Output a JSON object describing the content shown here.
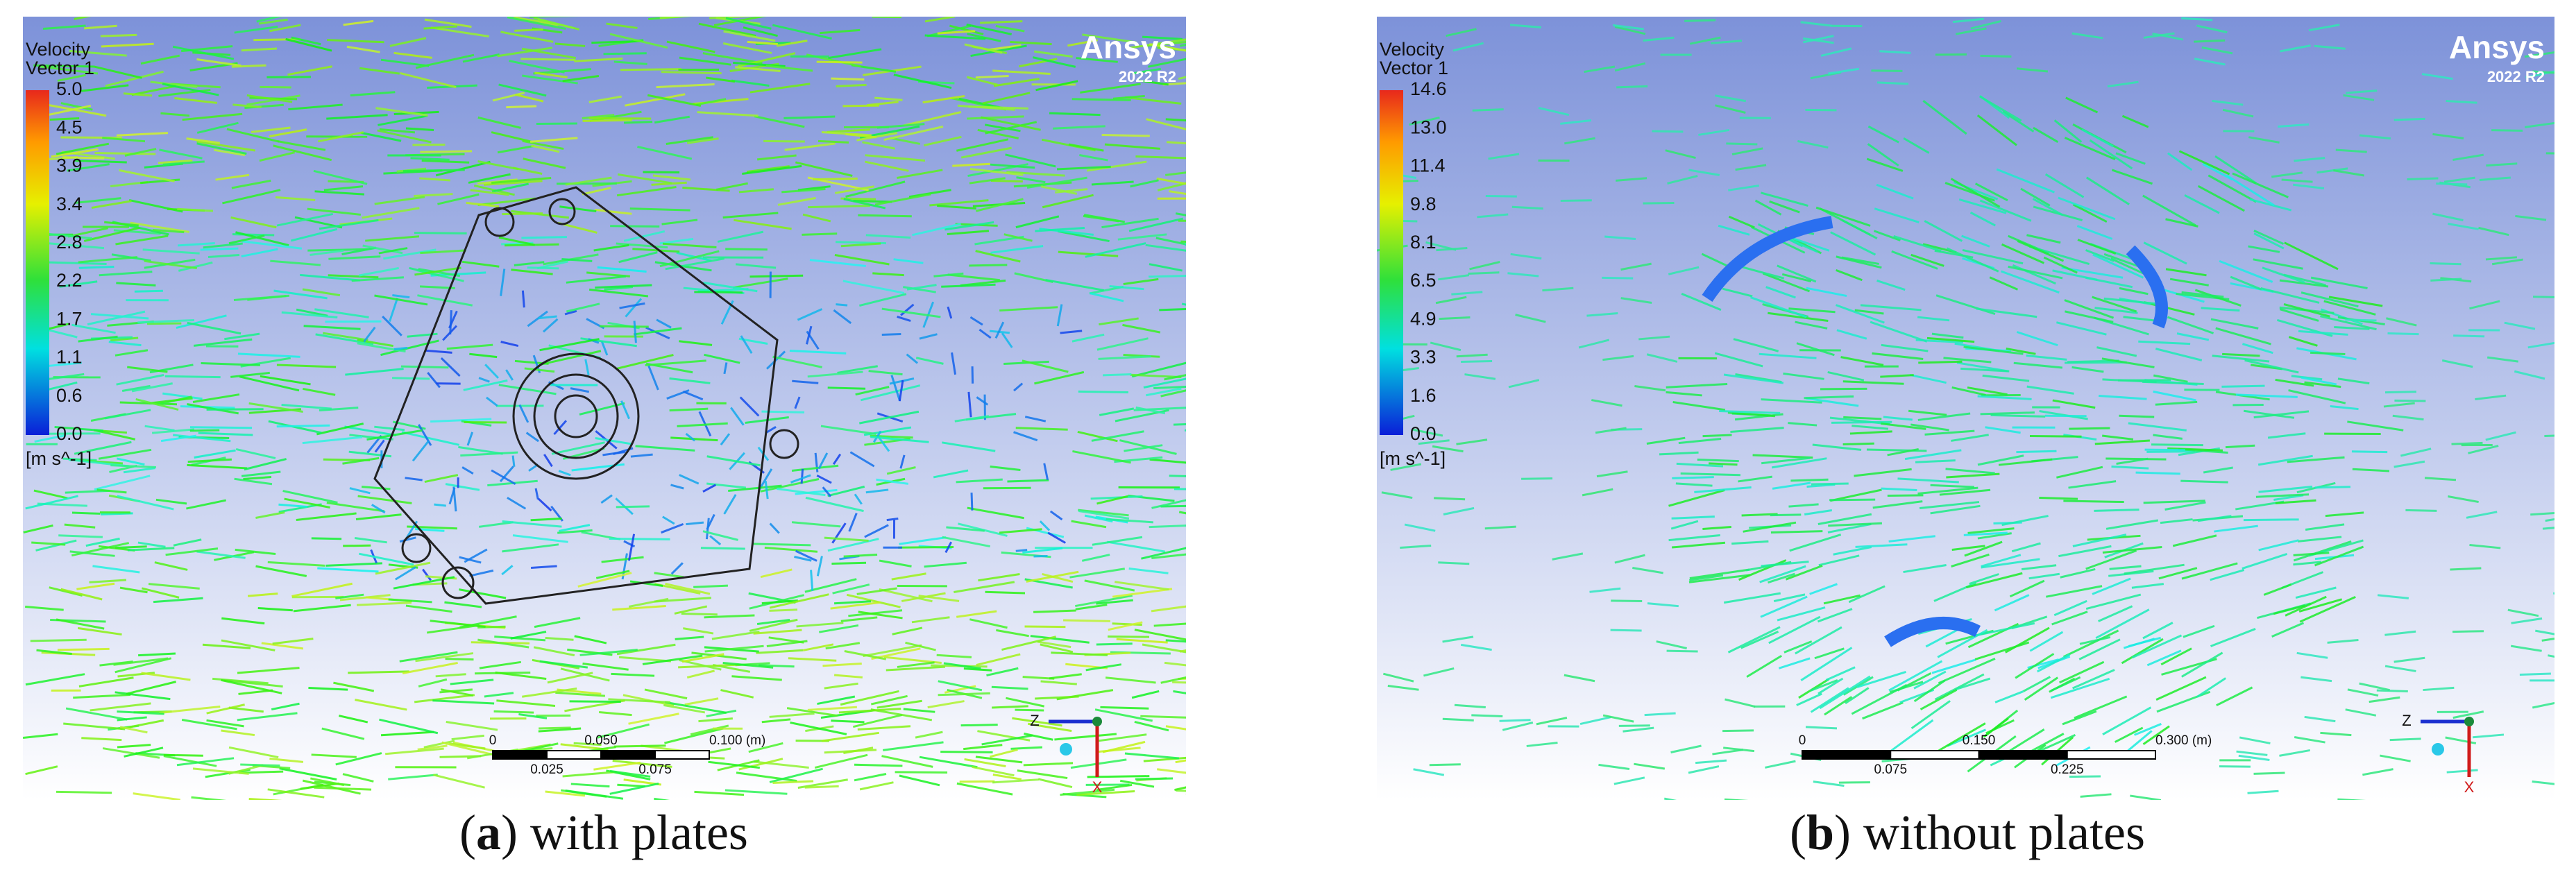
{
  "panels": [
    {
      "legend_title": [
        "Velocity",
        "Vector 1"
      ],
      "colorbar_labels": [
        "5.0",
        "4.5",
        "3.9",
        "3.4",
        "2.8",
        "2.2",
        "1.7",
        "1.1",
        "0.6",
        "0.0"
      ],
      "unit": "[m s^-1]",
      "logo": "Ansys",
      "version": "2022 R2",
      "scale_top": [
        "0",
        "0.050",
        "0.100 (m)"
      ],
      "scale_bottom": [
        "0.025",
        "0.075"
      ],
      "axis_z": "Z",
      "axis_x": "X",
      "caption": [
        "(",
        "a",
        ") with plates"
      ]
    },
    {
      "legend_title": [
        "Velocity",
        "Vector 1"
      ],
      "colorbar_labels": [
        "14.6",
        "13.0",
        "11.4",
        "9.8",
        "8.1",
        "6.5",
        "4.9",
        "3.3",
        "1.6",
        "0.0"
      ],
      "unit": "[m s^-1]",
      "logo": "Ansys",
      "version": "2022 R2",
      "scale_top": [
        "0",
        "0.150",
        "0.300 (m)"
      ],
      "scale_bottom": [
        "0.075",
        "0.225"
      ],
      "axis_z": "Z",
      "axis_x": "X",
      "caption": [
        "(",
        "b",
        ") without plates"
      ]
    }
  ]
}
